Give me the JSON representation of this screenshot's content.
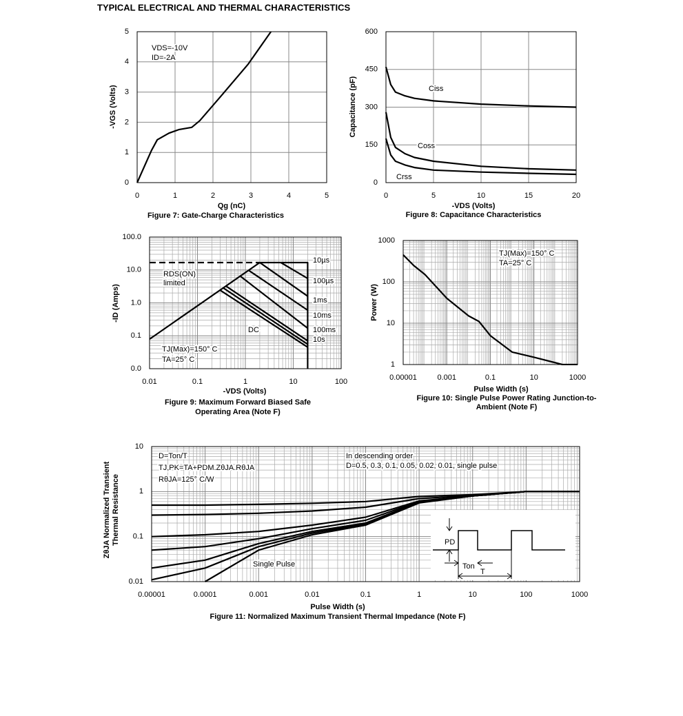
{
  "page_title": "TYPICAL ELECTRICAL AND THERMAL CHARACTERISTICS",
  "chart_data": [
    {
      "type": "line",
      "caption": [
        "Figure 7: Gate-Charge Characteristics"
      ],
      "x_label": "Qg (nC)",
      "y_label": [
        "-VGS (Volts)"
      ],
      "xlim": [
        0,
        5
      ],
      "xticks": [
        0,
        1,
        2,
        3,
        4,
        5
      ],
      "ylim": [
        0,
        5
      ],
      "yticks": [
        0,
        1,
        2,
        3,
        4,
        5
      ],
      "grid": true,
      "log_x": false,
      "log_y": false,
      "series": [
        {
          "color": "#000000",
          "x": [
            0,
            0.38,
            0.53,
            0.84,
            1.11,
            1.44,
            1.65,
            2.2,
            2.93,
            3.53
          ],
          "values": [
            0,
            1.07,
            1.42,
            1.64,
            1.76,
            1.83,
            2.05,
            2.85,
            3.93,
            5.0
          ]
        }
      ],
      "annotations": [
        "VDS=-10V",
        "ID=-2A"
      ]
    },
    {
      "type": "line",
      "caption": [
        "Figure 8: Capacitance Characteristics"
      ],
      "x_label": "-VDS (Volts)",
      "y_label": [
        "Capacitance (pF)"
      ],
      "xlim": [
        0,
        20
      ],
      "xticks": [
        0,
        5,
        10,
        15,
        20
      ],
      "ylim": [
        0,
        600
      ],
      "yticks": [
        0,
        150,
        300,
        450,
        600
      ],
      "grid": true,
      "log_x": false,
      "log_y": false,
      "series": [
        {
          "name": "Ciss",
          "color": "#000000",
          "x": [
            0,
            0.5,
            1,
            2,
            3,
            5,
            10,
            15,
            20
          ],
          "values": [
            460,
            390,
            360,
            345,
            335,
            325,
            312,
            305,
            300
          ]
        },
        {
          "name": "Coss",
          "color": "#000000",
          "x": [
            0,
            0.5,
            1,
            2,
            3,
            5,
            10,
            15,
            20
          ],
          "values": [
            280,
            180,
            140,
            115,
            100,
            85,
            65,
            55,
            50
          ]
        },
        {
          "name": "Crss",
          "color": "#000000",
          "x": [
            0,
            0.5,
            1,
            2,
            3,
            5,
            10,
            15,
            20
          ],
          "values": [
            175,
            110,
            85,
            70,
            60,
            50,
            42,
            37,
            33
          ]
        }
      ],
      "annotations": []
    },
    {
      "type": "line",
      "caption": [
        "Figure 9: Maximum Forward Biased Safe",
        "Operating Area (Note F)"
      ],
      "x_label": "-VDS (Volts)",
      "y_label": [
        "-ID (Amps)"
      ],
      "xlim": [
        0.01,
        100
      ],
      "xticks": [
        0.01,
        0.1,
        1,
        10,
        100
      ],
      "ylim": [
        0.01,
        100
      ],
      "yticks": [
        {
          "value": 0.01,
          "label": "0.0"
        },
        {
          "value": 0.1,
          "label": "0.1"
        },
        {
          "value": 1,
          "label": "1.0"
        },
        {
          "value": 10,
          "label": "10.0"
        },
        {
          "value": 100,
          "label": "100.0"
        }
      ],
      "grid": true,
      "minor_grid": true,
      "log_x": true,
      "log_y": true,
      "series": [
        {
          "color": "#000000",
          "x": [
            0.01,
            2,
            20,
            20
          ],
          "values": [
            0.079,
            16.8,
            16.8,
            0.01
          ]
        },
        {
          "color": "#000000",
          "dash": true,
          "x": [
            0.01,
            2
          ],
          "values": [
            16.8,
            16.8
          ]
        },
        {
          "name": "10µs",
          "color": "#000000",
          "x": [
            5.5,
            20
          ],
          "values": [
            16.8,
            5.5
          ]
        },
        {
          "name": "100µs",
          "color": "#000000",
          "x": [
            2,
            20
          ],
          "values": [
            16.8,
            1.6
          ]
        },
        {
          "name": "1ms",
          "color": "#000000",
          "x": [
            1.2,
            20
          ],
          "values": [
            9.5,
            0.6
          ]
        },
        {
          "name": "10ms",
          "color": "#000000",
          "x": [
            0.8,
            20
          ],
          "values": [
            6.3,
            0.17
          ]
        },
        {
          "name": "100ms",
          "color": "#000000",
          "x": [
            0.4,
            20
          ],
          "values": [
            3.2,
            0.07
          ]
        },
        {
          "name": "10s",
          "color": "#000000",
          "x": [
            0.35,
            20
          ],
          "values": [
            2.8,
            0.055
          ]
        },
        {
          "name": "DC",
          "color": "#000000",
          "x": [
            0.3,
            20
          ],
          "values": [
            2.4,
            0.045
          ]
        }
      ],
      "annotations": [
        "RDS(ON)",
        "limited",
        "TJ(Max)=150° C",
        "TA=25° C"
      ]
    },
    {
      "type": "line",
      "caption": [
        "Figure 10: Single Pulse Power Rating Junction-to-",
        "Ambient (Note F)"
      ],
      "x_label": "Pulse Width (s)",
      "y_label": [
        "Power (W)"
      ],
      "xlim": [
        1e-05,
        1000
      ],
      "xticks": [
        1e-05,
        0.001,
        0.1,
        10,
        1000
      ],
      "ylim": [
        1,
        1000
      ],
      "yticks": [
        1,
        10,
        100,
        1000
      ],
      "grid": true,
      "minor_grid": true,
      "log_x": true,
      "log_y": true,
      "series": [
        {
          "color": "#000000",
          "x": [
            1e-05,
            3e-05,
            0.0001,
            0.001,
            0.01,
            0.03,
            0.1,
            1,
            10,
            100,
            200,
            1000
          ],
          "values": [
            450,
            250,
            150,
            40,
            15,
            11,
            5,
            2,
            1.5,
            1.1,
            1.0,
            1.0
          ]
        }
      ],
      "annotations": [
        "TJ(Max)=150° C",
        "TA=25° C"
      ]
    },
    {
      "type": "line",
      "caption": [
        "Figure 11: Normalized Maximum Transient Thermal Impedance (Note F)"
      ],
      "x_label": "Pulse Width (s)",
      "y_label": [
        "ZθJA Normalized Transient",
        "Thermal Resistance"
      ],
      "xlim": [
        1e-05,
        1000
      ],
      "xticks": [
        1e-05,
        0.0001,
        0.001,
        0.01,
        0.1,
        1,
        10,
        100,
        1000
      ],
      "ylim": [
        0.01,
        10
      ],
      "yticks": [
        0.01,
        0.1,
        1,
        10
      ],
      "grid": true,
      "minor_grid": true,
      "log_x": true,
      "log_y": true,
      "x": [
        1e-05,
        0.0001,
        0.001,
        0.01,
        0.1,
        1,
        10,
        100,
        1000
      ],
      "series": [
        {
          "color": "#000000",
          "values": [
            0.5,
            0.5,
            0.52,
            0.55,
            0.6,
            0.78,
            0.85,
            1.0,
            1.0
          ]
        },
        {
          "color": "#000000",
          "values": [
            0.3,
            0.31,
            0.33,
            0.37,
            0.45,
            0.7,
            0.82,
            1.0,
            1.0
          ]
        },
        {
          "color": "#000000",
          "values": [
            0.1,
            0.11,
            0.13,
            0.18,
            0.27,
            0.62,
            0.8,
            1.0,
            1.0
          ]
        },
        {
          "color": "#000000",
          "values": [
            0.05,
            0.06,
            0.09,
            0.15,
            0.23,
            0.6,
            0.8,
            1.0,
            1.0
          ]
        },
        {
          "color": "#000000",
          "values": [
            0.02,
            0.03,
            0.07,
            0.13,
            0.2,
            0.58,
            0.8,
            1.0,
            1.0
          ]
        },
        {
          "color": "#000000",
          "values": [
            0.011,
            0.02,
            0.06,
            0.12,
            0.19,
            0.57,
            0.8,
            1.0,
            1.0
          ]
        },
        {
          "color": "#000000",
          "values": [
            null,
            0.01,
            0.05,
            0.11,
            0.18,
            0.56,
            0.8,
            1.0,
            1.0
          ]
        }
      ],
      "annotations": [
        "D=Ton/T",
        "TJ,PK=TA+PDM.ZθJA.RθJA",
        "RθJA=125° C/W",
        "In descending order",
        "D=0.5, 0.3, 0.1, 0.05, 0.02, 0.01, single pulse",
        "Single Pulse",
        "PD",
        "Ton",
        "T"
      ]
    }
  ]
}
